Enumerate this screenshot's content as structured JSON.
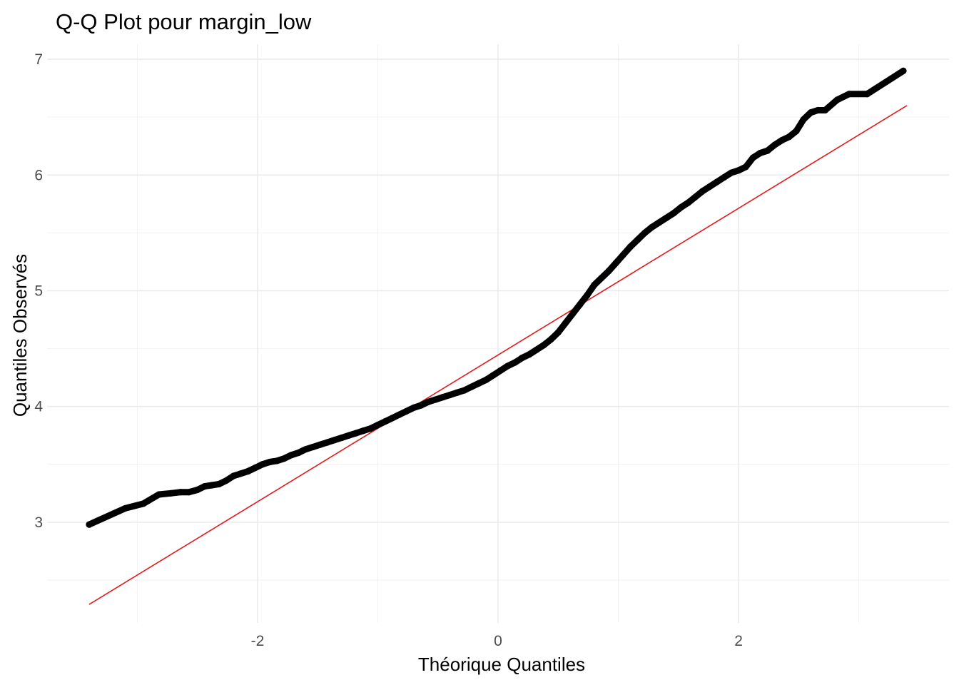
{
  "chart_data": {
    "type": "scatter",
    "title": "Q-Q Plot pour margin_low",
    "xlabel": "Théorique Quantiles",
    "ylabel": "Quantiles Observés",
    "x_ticks": [
      -2,
      0,
      2
    ],
    "y_ticks": [
      3,
      4,
      5,
      6,
      7
    ],
    "xlim": [
      -3.75,
      3.75
    ],
    "ylim": [
      2.13,
      7.13
    ],
    "grid": true,
    "point_color": "#000000",
    "line_color": "#e31a1c",
    "points": [
      [
        -3.4,
        2.98
      ],
      [
        -3.1,
        3.12
      ],
      [
        -2.95,
        3.16
      ],
      [
        -2.82,
        3.24
      ],
      [
        -2.72,
        3.25
      ],
      [
        -2.64,
        3.26
      ],
      [
        -2.57,
        3.26
      ],
      [
        -2.5,
        3.28
      ],
      [
        -2.44,
        3.31
      ],
      [
        -2.38,
        3.32
      ],
      [
        -2.32,
        3.33
      ],
      [
        -2.26,
        3.36
      ],
      [
        -2.2,
        3.4
      ],
      [
        -2.14,
        3.42
      ],
      [
        -2.08,
        3.44
      ],
      [
        -2.02,
        3.47
      ],
      [
        -1.96,
        3.5
      ],
      [
        -1.9,
        3.52
      ],
      [
        -1.84,
        3.53
      ],
      [
        -1.78,
        3.55
      ],
      [
        -1.72,
        3.58
      ],
      [
        -1.66,
        3.6
      ],
      [
        -1.6,
        3.63
      ],
      [
        -1.54,
        3.65
      ],
      [
        -1.48,
        3.67
      ],
      [
        -1.42,
        3.69
      ],
      [
        -1.36,
        3.71
      ],
      [
        -1.3,
        3.73
      ],
      [
        -1.24,
        3.75
      ],
      [
        -1.18,
        3.77
      ],
      [
        -1.12,
        3.79
      ],
      [
        -1.06,
        3.81
      ],
      [
        -1.0,
        3.84
      ],
      [
        -0.94,
        3.87
      ],
      [
        -0.88,
        3.9
      ],
      [
        -0.82,
        3.93
      ],
      [
        -0.76,
        3.96
      ],
      [
        -0.7,
        3.99
      ],
      [
        -0.64,
        4.01
      ],
      [
        -0.58,
        4.04
      ],
      [
        -0.52,
        4.06
      ],
      [
        -0.46,
        4.08
      ],
      [
        -0.4,
        4.1
      ],
      [
        -0.34,
        4.12
      ],
      [
        -0.28,
        4.14
      ],
      [
        -0.22,
        4.17
      ],
      [
        -0.16,
        4.2
      ],
      [
        -0.1,
        4.23
      ],
      [
        -0.04,
        4.27
      ],
      [
        0.02,
        4.31
      ],
      [
        0.08,
        4.35
      ],
      [
        0.14,
        4.38
      ],
      [
        0.2,
        4.42
      ],
      [
        0.26,
        4.45
      ],
      [
        0.32,
        4.49
      ],
      [
        0.38,
        4.53
      ],
      [
        0.44,
        4.58
      ],
      [
        0.5,
        4.64
      ],
      [
        0.56,
        4.72
      ],
      [
        0.62,
        4.8
      ],
      [
        0.68,
        4.88
      ],
      [
        0.74,
        4.96
      ],
      [
        0.8,
        5.05
      ],
      [
        0.86,
        5.11
      ],
      [
        0.92,
        5.17
      ],
      [
        0.98,
        5.24
      ],
      [
        1.04,
        5.31
      ],
      [
        1.1,
        5.38
      ],
      [
        1.16,
        5.44
      ],
      [
        1.22,
        5.5
      ],
      [
        1.28,
        5.55
      ],
      [
        1.34,
        5.59
      ],
      [
        1.4,
        5.63
      ],
      [
        1.46,
        5.67
      ],
      [
        1.52,
        5.72
      ],
      [
        1.58,
        5.76
      ],
      [
        1.64,
        5.81
      ],
      [
        1.7,
        5.86
      ],
      [
        1.76,
        5.9
      ],
      [
        1.82,
        5.94
      ],
      [
        1.88,
        5.98
      ],
      [
        1.94,
        6.02
      ],
      [
        2.0,
        6.04
      ],
      [
        2.06,
        6.07
      ],
      [
        2.12,
        6.15
      ],
      [
        2.18,
        6.19
      ],
      [
        2.24,
        6.21
      ],
      [
        2.3,
        6.26
      ],
      [
        2.36,
        6.3
      ],
      [
        2.42,
        6.33
      ],
      [
        2.48,
        6.38
      ],
      [
        2.54,
        6.48
      ],
      [
        2.6,
        6.54
      ],
      [
        2.66,
        6.56
      ],
      [
        2.72,
        6.56
      ],
      [
        2.82,
        6.65
      ],
      [
        2.92,
        6.7
      ],
      [
        3.07,
        6.7
      ],
      [
        3.37,
        6.9
      ]
    ],
    "reference_line": {
      "x": [
        -3.4,
        3.4
      ],
      "y": [
        2.29,
        6.6
      ]
    }
  }
}
